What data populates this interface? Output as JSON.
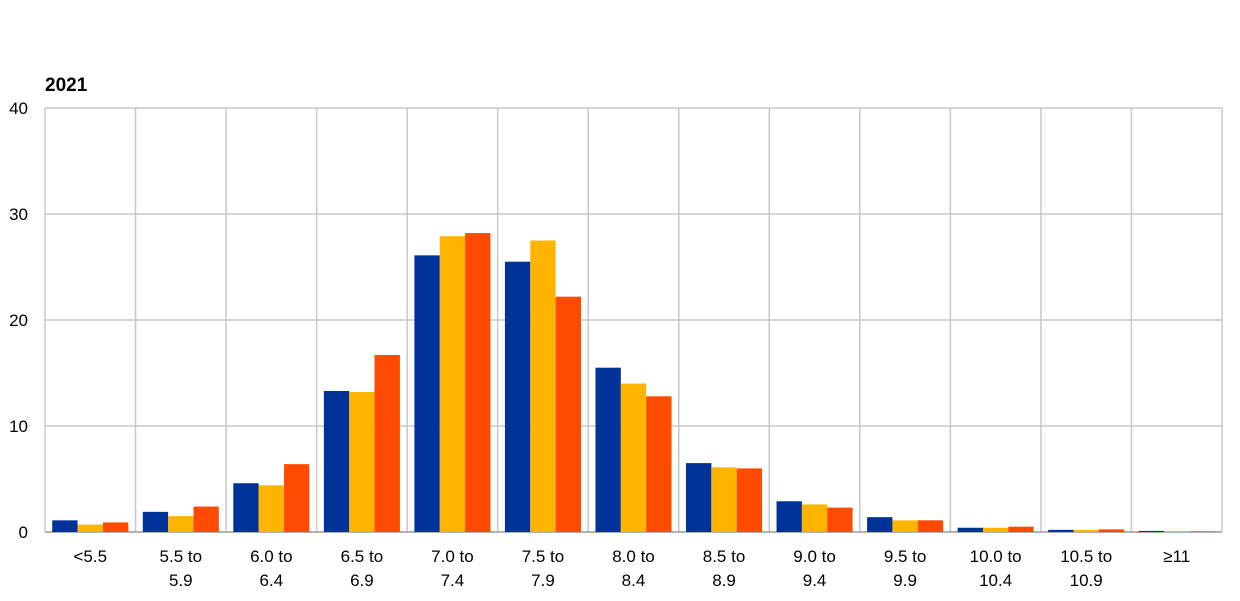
{
  "chart_data": {
    "type": "bar",
    "title": "2021",
    "xlabel": "",
    "ylabel": "",
    "ylim": [
      0,
      40
    ],
    "yticks": [
      "0",
      "10",
      "20",
      "30",
      "40"
    ],
    "grid": true,
    "legend": "none",
    "categories": [
      [
        "<5.5"
      ],
      [
        "5.5 to",
        "5.9"
      ],
      [
        "6.0 to",
        "6.4"
      ],
      [
        "6.5 to",
        "6.9"
      ],
      [
        "7.0 to",
        "7.4"
      ],
      [
        "7.5 to",
        "7.9"
      ],
      [
        "8.0 to",
        "8.4"
      ],
      [
        "8.5 to",
        "8.9"
      ],
      [
        "9.0 to",
        "9.4"
      ],
      [
        "9.5 to",
        "9.9"
      ],
      [
        "10.0 to",
        "10.4"
      ],
      [
        "10.5 to",
        "10.9"
      ],
      [
        "≥11"
      ]
    ],
    "series": [
      {
        "color": "#003399",
        "values": [
          1.1,
          1.9,
          4.6,
          13.3,
          26.1,
          25.5,
          15.5,
          6.5,
          2.9,
          1.4,
          0.4,
          0.2,
          0.1
        ]
      },
      {
        "color": "#FFB400",
        "values": [
          0.7,
          1.5,
          4.4,
          13.2,
          27.9,
          27.5,
          14.0,
          6.1,
          2.6,
          1.1,
          0.4,
          0.2,
          0.05
        ]
      },
      {
        "color": "#FF4B00",
        "values": [
          0.9,
          2.4,
          6.4,
          16.7,
          28.2,
          22.2,
          12.8,
          6.0,
          2.3,
          1.1,
          0.5,
          0.25,
          0.05
        ]
      }
    ]
  }
}
